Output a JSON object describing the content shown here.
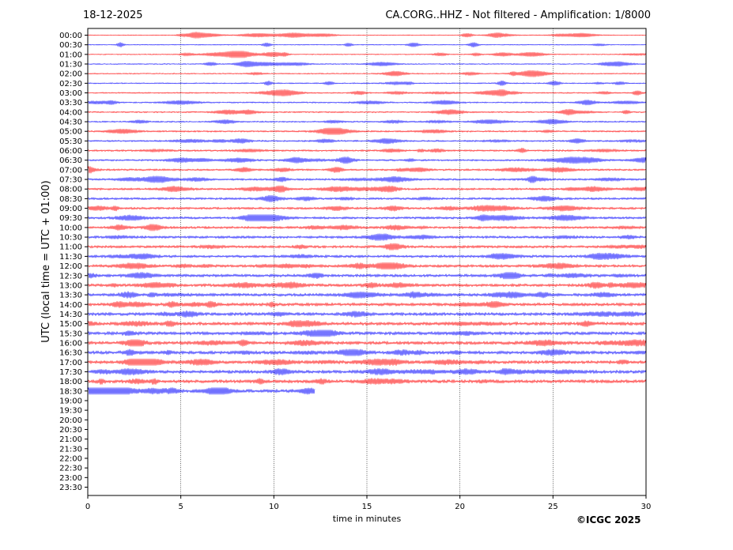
{
  "header": {
    "date": "18-12-2025",
    "title": "CA.CORG..HHZ - Not filtered - Amplification: 1/8000"
  },
  "copyright": "©ICGC 2025",
  "chart_data": {
    "type": "line",
    "subtype": "helicorder",
    "xlabel": "time in minutes",
    "ylabel": "UTC (local time = UTC + 01:00)",
    "xlim": [
      0,
      30
    ],
    "xticks": [
      0,
      5,
      10,
      15,
      20,
      25,
      30
    ],
    "vertical_gridlines": "dotted",
    "trace_colors": [
      "#ff0000",
      "#0000ff"
    ],
    "row_labels": [
      "00:00",
      "00:30",
      "01:00",
      "01:30",
      "02:00",
      "02:30",
      "03:00",
      "03:30",
      "04:00",
      "04:30",
      "05:00",
      "05:30",
      "06:00",
      "06:30",
      "07:00",
      "07:30",
      "08:00",
      "08:30",
      "09:00",
      "09:30",
      "10:00",
      "10:30",
      "11:00",
      "11:30",
      "12:00",
      "12:30",
      "13:00",
      "13:30",
      "14:00",
      "14:30",
      "15:00",
      "15:30",
      "16:00",
      "16:30",
      "17:00",
      "17:30",
      "18:00",
      "18:30",
      "19:00",
      "19:30",
      "20:00",
      "20:30",
      "21:00",
      "21:30",
      "22:00",
      "22:30",
      "23:00",
      "23:30"
    ],
    "rows_recorded": 38,
    "last_row_end_minute": 12.2
  }
}
